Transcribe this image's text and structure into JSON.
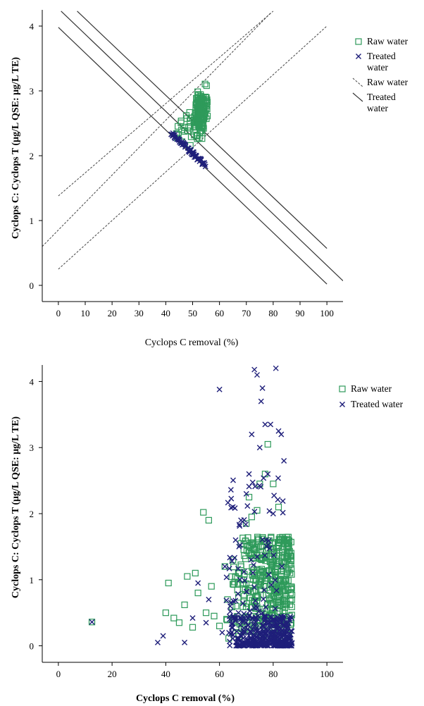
{
  "chart_data": [
    {
      "type": "scatter",
      "title": "",
      "xlabel": "Cyclops C removal (%)",
      "ylabel": "Cyclops C: Cyclops T (μg/L QSE: μg/L TE)",
      "xlim": [
        -6,
        106
      ],
      "ylim": [
        -0.25,
        4.25
      ],
      "x_ticks": [
        0,
        10,
        20,
        30,
        40,
        50,
        60,
        70,
        80,
        90,
        100
      ],
      "y_ticks": [
        0,
        1,
        2,
        3,
        4
      ],
      "grid": false,
      "legend_position": "top-right",
      "legend": [
        {
          "label": "Raw water",
          "kind": "square-marker",
          "color": "#2e9a5a"
        },
        {
          "label": "Treated water",
          "kind": "x-marker",
          "color": "#1f1f7a"
        },
        {
          "label": "Raw water",
          "kind": "dashed-line",
          "color": "#444444"
        },
        {
          "label": "Treated water",
          "kind": "solid-line",
          "color": "#333333"
        }
      ],
      "series": [
        {
          "name": "Raw water",
          "marker": "square",
          "color": "#2e9a5a",
          "cluster": {
            "x_range": [
              42,
              58
            ],
            "y_range": [
              2.15,
              3.45
            ]
          }
        },
        {
          "name": "Treated water",
          "marker": "x",
          "color": "#1f1f7a",
          "cluster": {
            "x_range": [
              41,
              56
            ],
            "y_range": [
              2.0,
              2.7
            ]
          }
        }
      ],
      "lines": [
        {
          "name": "Raw water",
          "style": "dashed",
          "points": [
            [
              -6,
              0.6
            ],
            [
              79,
              4.2
            ]
          ]
        },
        {
          "name": "Raw water",
          "style": "dashed",
          "points": [
            [
              0,
              1.38
            ],
            [
              80,
              4.23
            ]
          ]
        },
        {
          "name": "Raw water",
          "style": "dashed",
          "points": [
            [
              0,
              0.25
            ],
            [
              100,
              4.0
            ]
          ]
        },
        {
          "name": "Treated water",
          "style": "solid",
          "points": [
            [
              1,
              4.23
            ],
            [
              106,
              0.07
            ]
          ]
        },
        {
          "name": "Treated water",
          "style": "solid",
          "points": [
            [
              7,
              4.23
            ],
            [
              100,
              0.57
            ]
          ]
        },
        {
          "name": "Treated water",
          "style": "solid",
          "points": [
            [
              0,
              3.98
            ],
            [
              100,
              0.02
            ]
          ]
        }
      ]
    },
    {
      "type": "scatter",
      "title": "",
      "xlabel": "Cyclops C removal (%)",
      "ylabel": "Cyclops C: Cyclops T (μg/L QSE: μg/L TE)",
      "xlim": [
        -6,
        106
      ],
      "ylim": [
        -0.25,
        4.25
      ],
      "x_ticks": [
        0,
        20,
        40,
        60,
        80,
        100
      ],
      "y_ticks": [
        0,
        1,
        2,
        3,
        4
      ],
      "grid": false,
      "legend_position": "top-right",
      "legend": [
        {
          "label": "Raw water",
          "kind": "square-marker",
          "color": "#2e9a5a"
        },
        {
          "label": "Treated water",
          "kind": "x-marker",
          "color": "#1f1f7a"
        }
      ],
      "series": [
        {
          "name": "Raw water",
          "marker": "square",
          "color": "#2e9a5a",
          "points": [
            [
              12.5,
              0.36
            ],
            [
              40,
              0.5
            ],
            [
              41,
              0.95
            ],
            [
              43,
              0.42
            ],
            [
              45,
              0.35
            ],
            [
              47,
              0.62
            ],
            [
              48,
              1.05
            ],
            [
              50,
              0.28
            ],
            [
              51,
              1.1
            ],
            [
              52,
              0.8
            ],
            [
              54,
              2.02
            ],
            [
              55,
              0.5
            ],
            [
              56,
              1.9
            ],
            [
              57,
              0.9
            ],
            [
              58,
              0.45
            ],
            [
              60,
              0.3
            ],
            [
              62,
              1.2
            ],
            [
              63,
              0.7
            ],
            [
              65,
              1.3
            ],
            [
              66,
              1.05
            ],
            [
              68,
              1.55
            ],
            [
              70,
              1.85
            ],
            [
              71,
              2.25
            ],
            [
              72,
              1.95
            ],
            [
              74,
              2.05
            ],
            [
              75,
              2.45
            ],
            [
              77,
              2.6
            ],
            [
              78,
              3.05
            ],
            [
              80,
              2.45
            ],
            [
              82,
              2.1
            ]
          ],
          "clusters": [
            {
              "x_range": [
                62,
                87
              ],
              "y_range": [
                0.05,
                1.75
              ]
            }
          ]
        },
        {
          "name": "Treated water",
          "marker": "x",
          "color": "#1f1f7a",
          "points": [
            [
              12.5,
              0.36
            ],
            [
              37,
              0.05
            ],
            [
              39,
              0.15
            ],
            [
              47,
              0.05
            ],
            [
              50,
              0.42
            ],
            [
              52,
              0.95
            ],
            [
              55,
              0.35
            ],
            [
              56,
              0.7
            ],
            [
              60,
              3.88
            ],
            [
              61,
              0.2
            ],
            [
              62,
              1.2
            ],
            [
              64,
              0.6
            ],
            [
              66,
              1.6
            ],
            [
              68,
              1.9
            ],
            [
              70,
              2.3
            ],
            [
              71,
              2.6
            ],
            [
              72,
              3.2
            ],
            [
              73,
              4.18
            ],
            [
              74,
              4.1
            ],
            [
              75,
              3.0
            ],
            [
              75.5,
              3.7
            ],
            [
              76,
              3.9
            ],
            [
              77,
              3.35
            ],
            [
              78,
              2.6
            ],
            [
              79,
              3.35
            ],
            [
              80,
              2.0
            ],
            [
              81,
              4.2
            ],
            [
              82,
              3.25
            ],
            [
              83,
              3.2
            ],
            [
              84,
              2.8
            ]
          ],
          "clusters": [
            {
              "x_range": [
                64,
                87
              ],
              "y_range": [
                0.0,
                0.6
              ]
            }
          ]
        }
      ]
    }
  ]
}
